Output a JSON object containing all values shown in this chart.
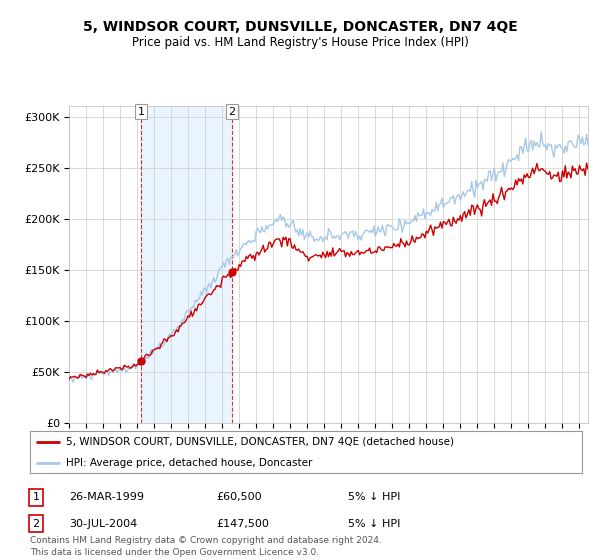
{
  "title": "5, WINDSOR COURT, DUNSVILLE, DONCASTER, DN7 4QE",
  "subtitle": "Price paid vs. HM Land Registry's House Price Index (HPI)",
  "sale1_year": 1999.23,
  "sale1_price": 60500,
  "sale2_year": 2004.58,
  "sale2_price": 147500,
  "legend_line1": "5, WINDSOR COURT, DUNSVILLE, DONCASTER, DN7 4QE (detached house)",
  "legend_line2": "HPI: Average price, detached house, Doncaster",
  "table_row1": [
    "1",
    "26-MAR-1999",
    "£60,500",
    "5% ↓ HPI"
  ],
  "table_row2": [
    "2",
    "30-JUL-2004",
    "£147,500",
    "5% ↓ HPI"
  ],
  "footnote": "Contains HM Land Registry data © Crown copyright and database right 2024.\nThis data is licensed under the Open Government Licence v3.0.",
  "ylim": [
    0,
    310000
  ],
  "yticks": [
    0,
    50000,
    100000,
    150000,
    200000,
    250000,
    300000
  ],
  "xlim_start": 1995,
  "xlim_end": 2025.5,
  "hpi_color": "#a8c8e8",
  "price_color": "#cc0000",
  "shade_color": "#ddeeff",
  "background_color": "#ffffff"
}
